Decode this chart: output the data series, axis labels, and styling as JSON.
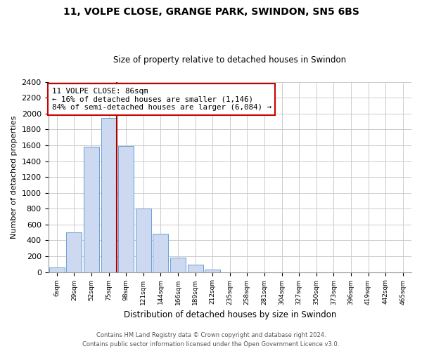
{
  "title1": "11, VOLPE CLOSE, GRANGE PARK, SWINDON, SN5 6BS",
  "title2": "Size of property relative to detached houses in Swindon",
  "xlabel": "Distribution of detached houses by size in Swindon",
  "ylabel": "Number of detached properties",
  "bar_labels": [
    "6sqm",
    "29sqm",
    "52sqm",
    "75sqm",
    "98sqm",
    "121sqm",
    "144sqm",
    "166sqm",
    "189sqm",
    "212sqm",
    "235sqm",
    "258sqm",
    "281sqm",
    "304sqm",
    "327sqm",
    "350sqm",
    "373sqm",
    "396sqm",
    "419sqm",
    "442sqm",
    "465sqm"
  ],
  "bar_values": [
    55,
    500,
    1580,
    1950,
    1590,
    800,
    480,
    185,
    95,
    35,
    0,
    0,
    0,
    0,
    0,
    0,
    0,
    0,
    0,
    0,
    0
  ],
  "bar_color": "#ccd9f0",
  "bar_edge_color": "#6b9fd4",
  "highlight_bar_index": 3,
  "highlight_line_color": "#aa0000",
  "annotation_line1": "11 VOLPE CLOSE: 86sqm",
  "annotation_line2": "← 16% of detached houses are smaller (1,146)",
  "annotation_line3": "84% of semi-detached houses are larger (6,084) →",
  "annotation_box_color": "#ffffff",
  "annotation_box_edge_color": "#cc0000",
  "ylim": [
    0,
    2400
  ],
  "yticks": [
    0,
    200,
    400,
    600,
    800,
    1000,
    1200,
    1400,
    1600,
    1800,
    2000,
    2200,
    2400
  ],
  "footer1": "Contains HM Land Registry data © Crown copyright and database right 2024.",
  "footer2": "Contains public sector information licensed under the Open Government Licence v3.0.",
  "bg_color": "#ffffff",
  "grid_color": "#cccccc"
}
